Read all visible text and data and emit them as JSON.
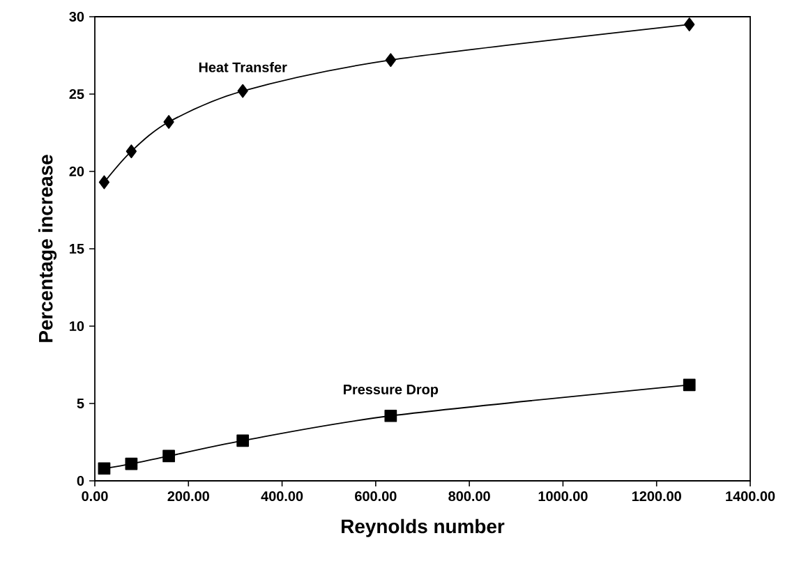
{
  "chart_data": {
    "type": "line",
    "xlabel": "Reynolds number",
    "ylabel": "Percentage increase",
    "xlim": [
      0,
      1400
    ],
    "ylim": [
      0,
      30
    ],
    "xticks": [
      {
        "value": 0,
        "label": "0.00"
      },
      {
        "value": 200,
        "label": "200.00"
      },
      {
        "value": 400,
        "label": "400.00"
      },
      {
        "value": 600,
        "label": "600.00"
      },
      {
        "value": 800,
        "label": "800.00"
      },
      {
        "value": 1000,
        "label": "1000.00"
      },
      {
        "value": 1200,
        "label": "1200.00"
      },
      {
        "value": 1400,
        "label": "1400.00"
      }
    ],
    "yticks": [
      0,
      5,
      10,
      15,
      20,
      25,
      30
    ],
    "x": [
      20,
      78,
      158,
      316,
      632,
      1270
    ],
    "series": [
      {
        "name": "Heat Transfer",
        "color": "#000000",
        "marker": "diamond",
        "values": [
          19.3,
          21.3,
          23.2,
          25.2,
          27.2,
          29.5
        ]
      },
      {
        "name": "Pressure Drop",
        "color": "#000000",
        "marker": "square",
        "values": [
          0.8,
          1.1,
          1.6,
          2.6,
          4.2,
          6.2
        ]
      }
    ],
    "grid": false,
    "legend": false,
    "line_style": "solid"
  }
}
